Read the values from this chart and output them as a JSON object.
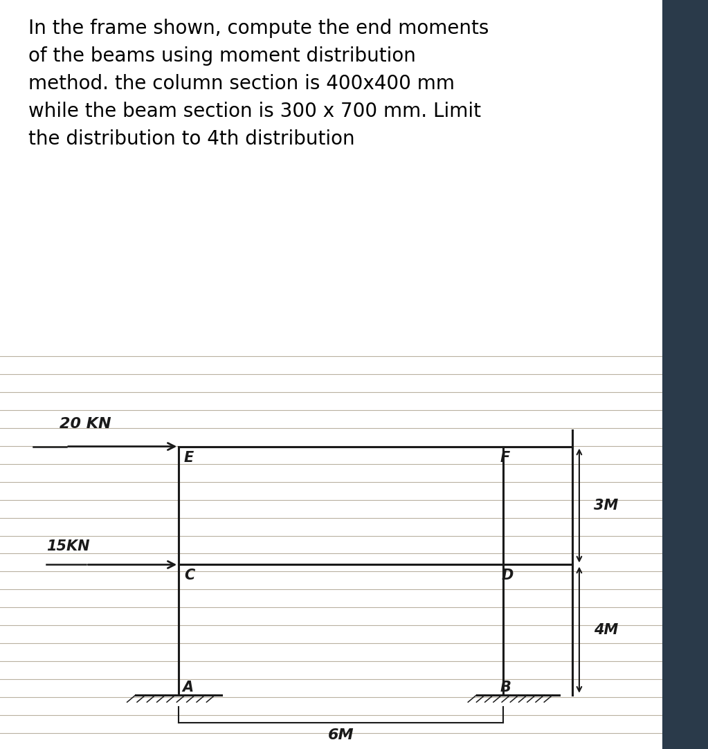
{
  "title_text": "In the frame shown, compute the end moments\nof the beams using moment distribution\nmethod. the column section is 400x400 mm\nwhile the beam section is 300 x 700 mm. Limit\nthe distribution to 4th distribution",
  "title_fontsize": 20,
  "title_color": "#000000",
  "bg_color": "#dbd6cc",
  "notebook_line_color": "#b8b0a0",
  "line_color": "#1a1a1a",
  "label_20KN": "20 KN",
  "label_15KN": "15KN",
  "label_E": "E",
  "label_F": "F",
  "label_C": "C",
  "label_D": "D",
  "label_A": "A",
  "label_B": "B",
  "label_3M": "3M",
  "label_4M": "4M",
  "label_6M": "6M",
  "struct_fontsize": 15
}
